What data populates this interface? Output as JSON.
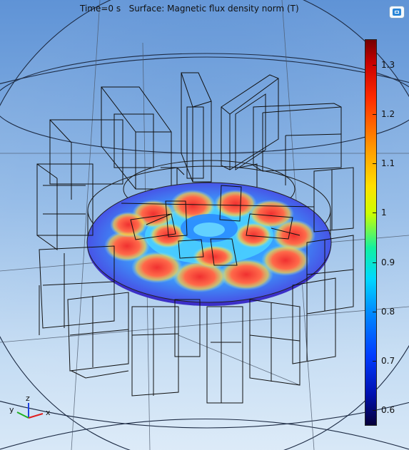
{
  "header": {
    "time_label": "Time=0 s",
    "surface_label": "Surface: Magnetic flux density norm (T)"
  },
  "toolbar": {
    "icon": "comsol-logo-icon"
  },
  "colorbar": {
    "min": 0.57,
    "max": 1.35,
    "ticks": [
      "1.3",
      "1.2",
      "1.1",
      "1",
      "0.9",
      "0.8",
      "0.7",
      "0.6"
    ],
    "tick_values": [
      1.3,
      1.2,
      1.1,
      1.0,
      0.9,
      0.8,
      0.7,
      0.6
    ],
    "colors": [
      "#06003a",
      "#0010b0",
      "#003cff",
      "#0090ff",
      "#00d8ff",
      "#12f0a0",
      "#ccff00",
      "#ffe000",
      "#ff9800",
      "#ff2a00",
      "#c80000",
      "#740000"
    ]
  },
  "axes_triad": {
    "z": "z",
    "y": "y",
    "x": "x",
    "colors": {
      "x": "#e02020",
      "y": "#20b020",
      "z": "#2040e0"
    }
  }
}
